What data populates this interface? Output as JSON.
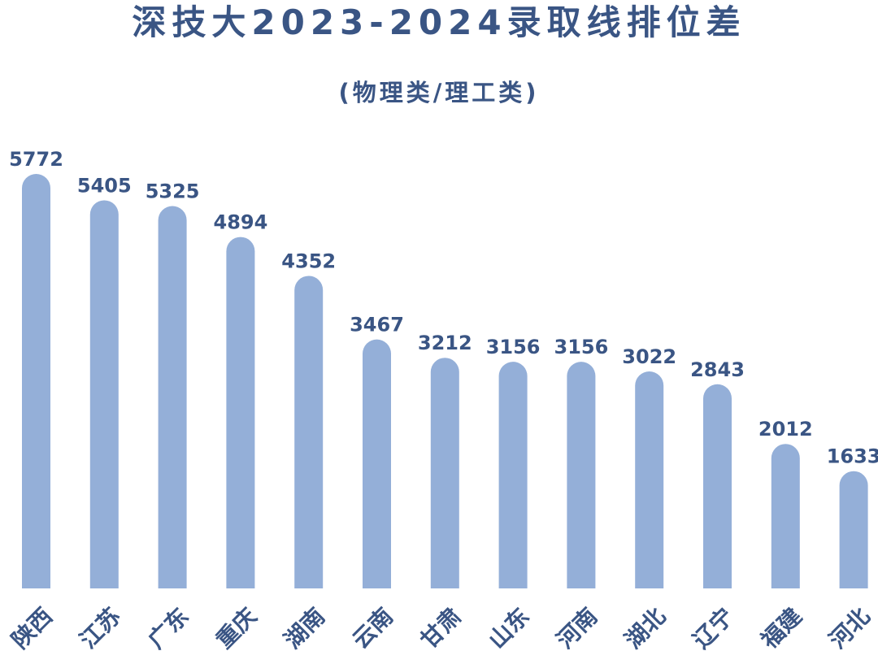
{
  "header": {
    "title": "深技大2023-2024录取线排位差",
    "subtitle": "(物理类/理工类)"
  },
  "colors": {
    "bar": "#94afd8",
    "text": "#3a5584"
  },
  "chart_data": {
    "type": "bar",
    "categories": [
      "陕西",
      "江苏",
      "广东",
      "重庆",
      "湖南",
      "云南",
      "甘肃",
      "山东",
      "河南",
      "湖北",
      "辽宁",
      "福建",
      "河北"
    ],
    "values": [
      5772,
      5405,
      5325,
      4894,
      4352,
      3467,
      3212,
      3156,
      3156,
      3022,
      2843,
      2012,
      1633
    ],
    "title": "深技大2023-2024录取线排位差",
    "subtitle": "(物理类/理工类)",
    "xlabel": "",
    "ylabel": "",
    "ylim": [
      0,
      6000
    ],
    "grid": false,
    "legend": "none",
    "data_labels": true
  }
}
